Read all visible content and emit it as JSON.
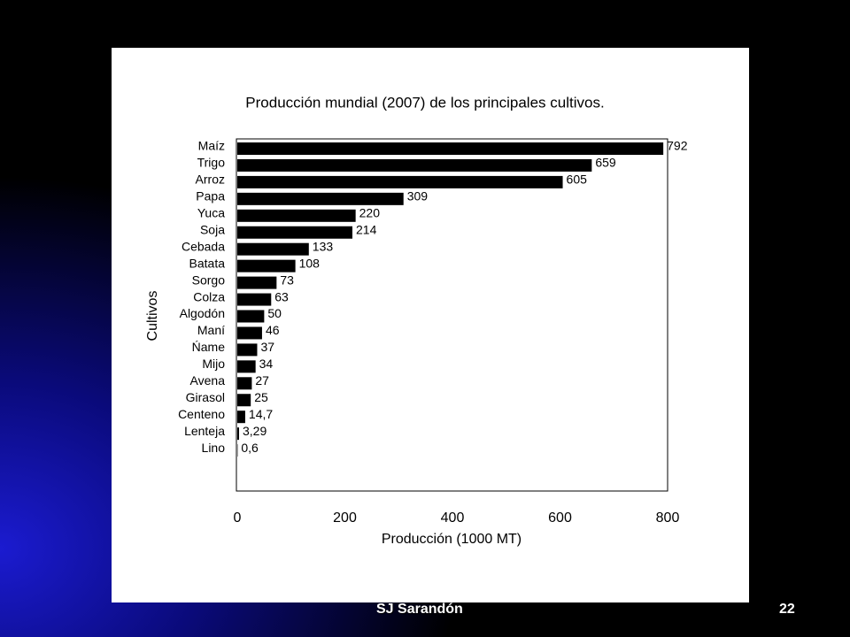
{
  "chart_data": {
    "type": "bar",
    "orientation": "horizontal",
    "title": "Producción mundial (2007) de los principales cultivos.",
    "x_label": "Producción (1000 MT)",
    "y_label": "Cultivos",
    "categories": [
      "Maíz",
      "Trigo",
      "Arroz",
      "Papa",
      "Yuca",
      "Soja",
      "Cebada",
      "Batata",
      "Sorgo",
      "Colza",
      "Algodón",
      "Maní",
      "Ńame",
      "Mijo",
      "Avena",
      "Girasol",
      "Centeno",
      "Lenteja",
      "Lino"
    ],
    "values": [
      792,
      659,
      605,
      309,
      220,
      214,
      133,
      108,
      73,
      63,
      50,
      46,
      37,
      34,
      27,
      25,
      14.7,
      3.29,
      0.6
    ],
    "value_labels": [
      "792",
      "659",
      "605",
      "309",
      "220",
      "214",
      "133",
      "108",
      "73",
      "63",
      "50",
      "46",
      "37",
      "34",
      "27",
      "25",
      "14,7",
      "3,29",
      "0,6"
    ],
    "color": "#000000",
    "xlim": [
      0,
      800
    ],
    "xticks": [
      0,
      200,
      400,
      600,
      800
    ],
    "grid": false
  },
  "footer": {
    "author": "SJ Sarandón",
    "page": "22"
  }
}
